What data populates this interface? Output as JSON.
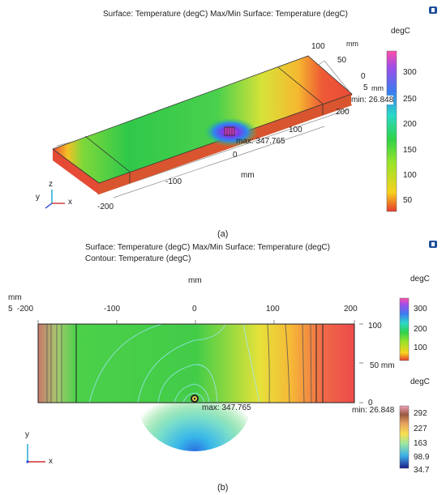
{
  "panel_a": {
    "title": "Surface: Temperature (degC)  Max/Min Surface: Temperature (degC)",
    "caption": "(a)",
    "unit_label": "degC",
    "colorbar_ticks": [
      "300",
      "250",
      "200",
      "150",
      "100",
      "50"
    ],
    "max_label": "max: 347.765",
    "min_label": "min: 26.848",
    "axis_x_label": "mm",
    "axis_y_label": "mm",
    "x_ticks": [
      "-200",
      "-100",
      "0",
      "100",
      "200"
    ],
    "y_ticks": [
      "100",
      "50",
      "0"
    ],
    "z_tick": "5",
    "z_unit": "mm",
    "triad": {
      "x": "x",
      "y": "y",
      "z": "z"
    }
  },
  "panel_b": {
    "title_line1": "Surface: Temperature (degC)  Max/Min Surface: Temperature (degC)",
    "title_line2": "Contour: Temperature (degC)",
    "caption": "(b)",
    "x_axis_unit": "mm",
    "left_unit": "mm",
    "left_tick": "5",
    "x_ticks": [
      "-200",
      "-100",
      "0",
      "100",
      "200"
    ],
    "y_ticks": [
      "100",
      "50 mm",
      "0"
    ],
    "max_label": "max: 347.765",
    "min_label": "min: 26.848",
    "surface_bar": {
      "unit": "degC",
      "ticks": [
        "300",
        "200",
        "100"
      ]
    },
    "contour_bar": {
      "unit": "degC",
      "ticks": [
        "292",
        "227",
        "163",
        "98.9",
        "34.7"
      ]
    },
    "triad": {
      "x": "x",
      "y": "y"
    }
  },
  "colors": {
    "hot": "#e8403a",
    "cold_spot": "#2a6fe0",
    "mid": "#3ecf3a",
    "warm": "#f3e030"
  }
}
